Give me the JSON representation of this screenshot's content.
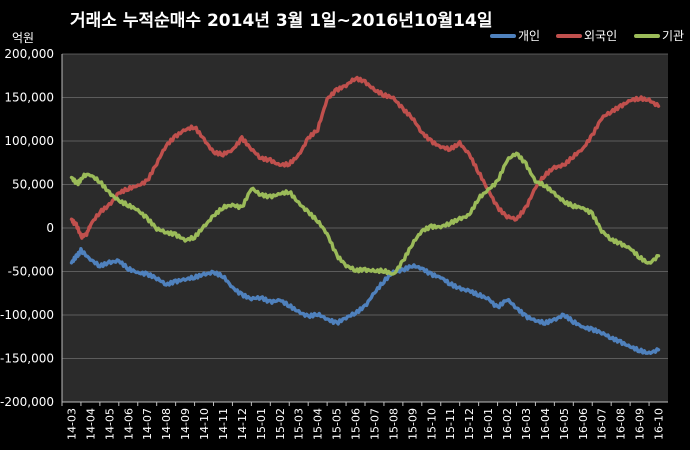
{
  "chart_data": {
    "type": "line",
    "title": "거래소 누적순매수 2014년 3월 1일~2016년10월14일",
    "unit_label": "억원",
    "ylim": [
      -200000,
      200000
    ],
    "yticks": [
      200000,
      150000,
      100000,
      50000,
      0,
      -50000,
      -100000,
      -150000,
      -200000
    ],
    "ytick_labels": [
      "200,000",
      "150,000",
      "100,000",
      "50,000",
      "0",
      "-50,000",
      "-100,000",
      "-150,000",
      "-200,000"
    ],
    "x_tick_labels": [
      "14-03",
      "14-04",
      "14-05",
      "14-06",
      "14-07",
      "14-08",
      "14-09",
      "14-10",
      "14-11",
      "14-12",
      "15-01",
      "15-02",
      "15-03",
      "15-04",
      "15-05",
      "15-06",
      "15-07",
      "15-08",
      "15-09",
      "15-10",
      "15-11",
      "15-12",
      "16-01",
      "16-02",
      "16-03",
      "16-04",
      "16-05",
      "16-06",
      "16-07",
      "16-08",
      "16-09",
      "16-10"
    ],
    "grid": true,
    "legend_position": "top-right",
    "plot_background": "#2b2b2b",
    "series": [
      {
        "name": "개인",
        "color": "#4f81bd",
        "points": [
          [
            0,
            -40000
          ],
          [
            0.3,
            -30000
          ],
          [
            0.5,
            -25000
          ],
          [
            1,
            -35000
          ],
          [
            1.5,
            -42000
          ],
          [
            2,
            -38000
          ],
          [
            2.5,
            -36000
          ],
          [
            3,
            -45000
          ],
          [
            3.5,
            -50000
          ],
          [
            4,
            -52000
          ],
          [
            4.5,
            -57000
          ],
          [
            5,
            -65000
          ],
          [
            5.5,
            -62000
          ],
          [
            6,
            -60000
          ],
          [
            6.5,
            -58000
          ],
          [
            7,
            -55000
          ],
          [
            7.5,
            -53000
          ],
          [
            8,
            -57000
          ],
          [
            8.5,
            -70000
          ],
          [
            9,
            -78000
          ],
          [
            9.5,
            -82000
          ],
          [
            10,
            -80000
          ],
          [
            10.5,
            -85000
          ],
          [
            11,
            -82000
          ],
          [
            11.5,
            -88000
          ],
          [
            12,
            -95000
          ],
          [
            12.5,
            -100000
          ],
          [
            13,
            -97000
          ],
          [
            13.5,
            -103000
          ],
          [
            14,
            -108000
          ],
          [
            14.5,
            -102000
          ],
          [
            15,
            -97000
          ],
          [
            15.5,
            -90000
          ],
          [
            16,
            -75000
          ],
          [
            16.5,
            -62000
          ],
          [
            17,
            -52000
          ],
          [
            17.5,
            -50000
          ],
          [
            18,
            -45000
          ],
          [
            18.5,
            -48000
          ],
          [
            19,
            -55000
          ],
          [
            19.5,
            -58000
          ],
          [
            20,
            -65000
          ],
          [
            20.5,
            -70000
          ],
          [
            21,
            -72000
          ],
          [
            21.5,
            -76000
          ],
          [
            22,
            -80000
          ],
          [
            22.5,
            -90000
          ],
          [
            23,
            -80000
          ],
          [
            23.5,
            -90000
          ],
          [
            24,
            -100000
          ],
          [
            24.5,
            -105000
          ],
          [
            25,
            -108000
          ],
          [
            25.5,
            -105000
          ],
          [
            26,
            -100000
          ],
          [
            26.5,
            -108000
          ],
          [
            27,
            -115000
          ],
          [
            27.5,
            -118000
          ],
          [
            28,
            -122000
          ],
          [
            28.5,
            -128000
          ],
          [
            29,
            -133000
          ],
          [
            29.5,
            -138000
          ],
          [
            30,
            -142000
          ],
          [
            30.5,
            -145000
          ],
          [
            31,
            -140000
          ]
        ]
      },
      {
        "name": "외국인",
        "color": "#c0504d",
        "points": [
          [
            0,
            10000
          ],
          [
            0.2,
            5000
          ],
          [
            0.5,
            -10000
          ],
          [
            0.8,
            -5000
          ],
          [
            1,
            5000
          ],
          [
            1.5,
            20000
          ],
          [
            2,
            28000
          ],
          [
            2.5,
            42000
          ],
          [
            3,
            47000
          ],
          [
            3.5,
            50000
          ],
          [
            4,
            55000
          ],
          [
            4.5,
            75000
          ],
          [
            5,
            95000
          ],
          [
            5.5,
            105000
          ],
          [
            6,
            112000
          ],
          [
            6.5,
            115000
          ],
          [
            7,
            100000
          ],
          [
            7.5,
            85000
          ],
          [
            8,
            83000
          ],
          [
            8.5,
            88000
          ],
          [
            9,
            102000
          ],
          [
            9.5,
            90000
          ],
          [
            10,
            80000
          ],
          [
            10.5,
            78000
          ],
          [
            11,
            73000
          ],
          [
            11.5,
            75000
          ],
          [
            12,
            85000
          ],
          [
            12.5,
            105000
          ],
          [
            13,
            115000
          ],
          [
            13.5,
            150000
          ],
          [
            14,
            160000
          ],
          [
            14.5,
            165000
          ],
          [
            15,
            173000
          ],
          [
            15.5,
            168000
          ],
          [
            16,
            158000
          ],
          [
            16.5,
            152000
          ],
          [
            17,
            148000
          ],
          [
            17.5,
            135000
          ],
          [
            18,
            125000
          ],
          [
            18.5,
            108000
          ],
          [
            19,
            98000
          ],
          [
            19.5,
            92000
          ],
          [
            20,
            90000
          ],
          [
            20.5,
            97000
          ],
          [
            21,
            85000
          ],
          [
            21.5,
            65000
          ],
          [
            22,
            45000
          ],
          [
            22.5,
            25000
          ],
          [
            23,
            15000
          ],
          [
            23.5,
            12000
          ],
          [
            24,
            25000
          ],
          [
            24.5,
            48000
          ],
          [
            25,
            62000
          ],
          [
            25.5,
            70000
          ],
          [
            26,
            72000
          ],
          [
            26.5,
            82000
          ],
          [
            27,
            90000
          ],
          [
            27.5,
            105000
          ],
          [
            28,
            125000
          ],
          [
            28.5,
            132000
          ],
          [
            29,
            138000
          ],
          [
            29.5,
            145000
          ],
          [
            30,
            148000
          ],
          [
            30.5,
            146000
          ],
          [
            31,
            140000
          ]
        ]
      },
      {
        "name": "기관",
        "color": "#9bbb59",
        "points": [
          [
            0,
            58000
          ],
          [
            0.3,
            52000
          ],
          [
            0.6,
            60000
          ],
          [
            1,
            62000
          ],
          [
            1.5,
            55000
          ],
          [
            2,
            42000
          ],
          [
            2.5,
            33000
          ],
          [
            3,
            28000
          ],
          [
            3.5,
            22000
          ],
          [
            4,
            12000
          ],
          [
            4.5,
            0
          ],
          [
            5,
            -5000
          ],
          [
            5.5,
            -8000
          ],
          [
            6,
            -15000
          ],
          [
            6.5,
            -12000
          ],
          [
            7,
            0
          ],
          [
            7.5,
            12000
          ],
          [
            8,
            22000
          ],
          [
            8.5,
            25000
          ],
          [
            9,
            22000
          ],
          [
            9.5,
            45000
          ],
          [
            10,
            38000
          ],
          [
            10.5,
            36000
          ],
          [
            11,
            40000
          ],
          [
            11.5,
            43000
          ],
          [
            12,
            30000
          ],
          [
            12.5,
            20000
          ],
          [
            13,
            10000
          ],
          [
            13.5,
            -5000
          ],
          [
            14,
            -30000
          ],
          [
            14.5,
            -42000
          ],
          [
            15,
            -48000
          ],
          [
            15.5,
            -48000
          ],
          [
            16,
            -50000
          ],
          [
            16.5,
            -50000
          ],
          [
            17,
            -55000
          ],
          [
            17.5,
            -40000
          ],
          [
            18,
            -20000
          ],
          [
            18.5,
            -5000
          ],
          [
            19,
            0
          ],
          [
            19.5,
            0
          ],
          [
            20,
            5000
          ],
          [
            20.5,
            10000
          ],
          [
            21,
            15000
          ],
          [
            21.5,
            35000
          ],
          [
            22,
            45000
          ],
          [
            22.5,
            55000
          ],
          [
            23,
            80000
          ],
          [
            23.5,
            88000
          ],
          [
            24,
            75000
          ],
          [
            24.5,
            55000
          ],
          [
            25,
            50000
          ],
          [
            25.5,
            40000
          ],
          [
            26,
            30000
          ],
          [
            26.5,
            25000
          ],
          [
            27,
            22000
          ],
          [
            27.5,
            15000
          ],
          [
            28,
            -5000
          ],
          [
            28.5,
            -15000
          ],
          [
            29,
            -20000
          ],
          [
            29.5,
            -25000
          ],
          [
            30,
            -35000
          ],
          [
            30.5,
            -42000
          ],
          [
            31,
            -32000
          ]
        ]
      }
    ]
  }
}
